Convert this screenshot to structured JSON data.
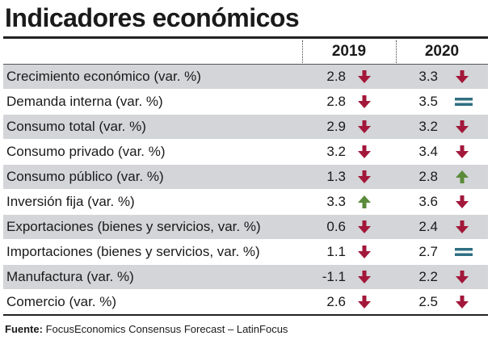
{
  "title": "Indicadores económicos",
  "years": [
    "2019",
    "2020"
  ],
  "colors": {
    "down": "#a3173a",
    "up": "#5a8a3a",
    "equal": "#2f6f82",
    "shade": "#d3d5d8"
  },
  "rows": [
    {
      "label": "Crecimiento económico (var. %)",
      "v2019": "2.8",
      "t2019": "down",
      "v2020": "3.3",
      "t2020": "down"
    },
    {
      "label": "Demanda interna (var. %)",
      "v2019": "2.8",
      "t2019": "down",
      "v2020": "3.5",
      "t2020": "equal"
    },
    {
      "label": "Consumo total (var. %)",
      "v2019": "2.9",
      "t2019": "down",
      "v2020": "3.2",
      "t2020": "down"
    },
    {
      "label": "Consumo privado (var. %)",
      "v2019": "3.2",
      "t2019": "down",
      "v2020": "3.4",
      "t2020": "down"
    },
    {
      "label": "Consumo público (var. %)",
      "v2019": "1.3",
      "t2019": "down",
      "v2020": "2.8",
      "t2020": "up"
    },
    {
      "label": "Inversión fija (var. %)",
      "v2019": "3.3",
      "t2019": "up",
      "v2020": "3.6",
      "t2020": "down"
    },
    {
      "label": "Exportaciones (bienes y servicios, var. %)",
      "v2019": "0.6",
      "t2019": "down",
      "v2020": "2.4",
      "t2020": "down"
    },
    {
      "label": "Importaciones (bienes y servicios, var. %)",
      "v2019": "1.1",
      "t2019": "down",
      "v2020": "2.7",
      "t2020": "equal"
    },
    {
      "label": "Manufactura (var. %)",
      "v2019": "-1.1",
      "t2019": "down",
      "v2020": "2.2",
      "t2020": "down"
    },
    {
      "label": "Comercio (var. %)",
      "v2019": "2.6",
      "t2019": "down",
      "v2020": "2.5",
      "t2020": "down"
    }
  ],
  "source": {
    "label": "Fuente:",
    "text": "FocusEconomics Consensus Forecast – LatinFocus"
  }
}
